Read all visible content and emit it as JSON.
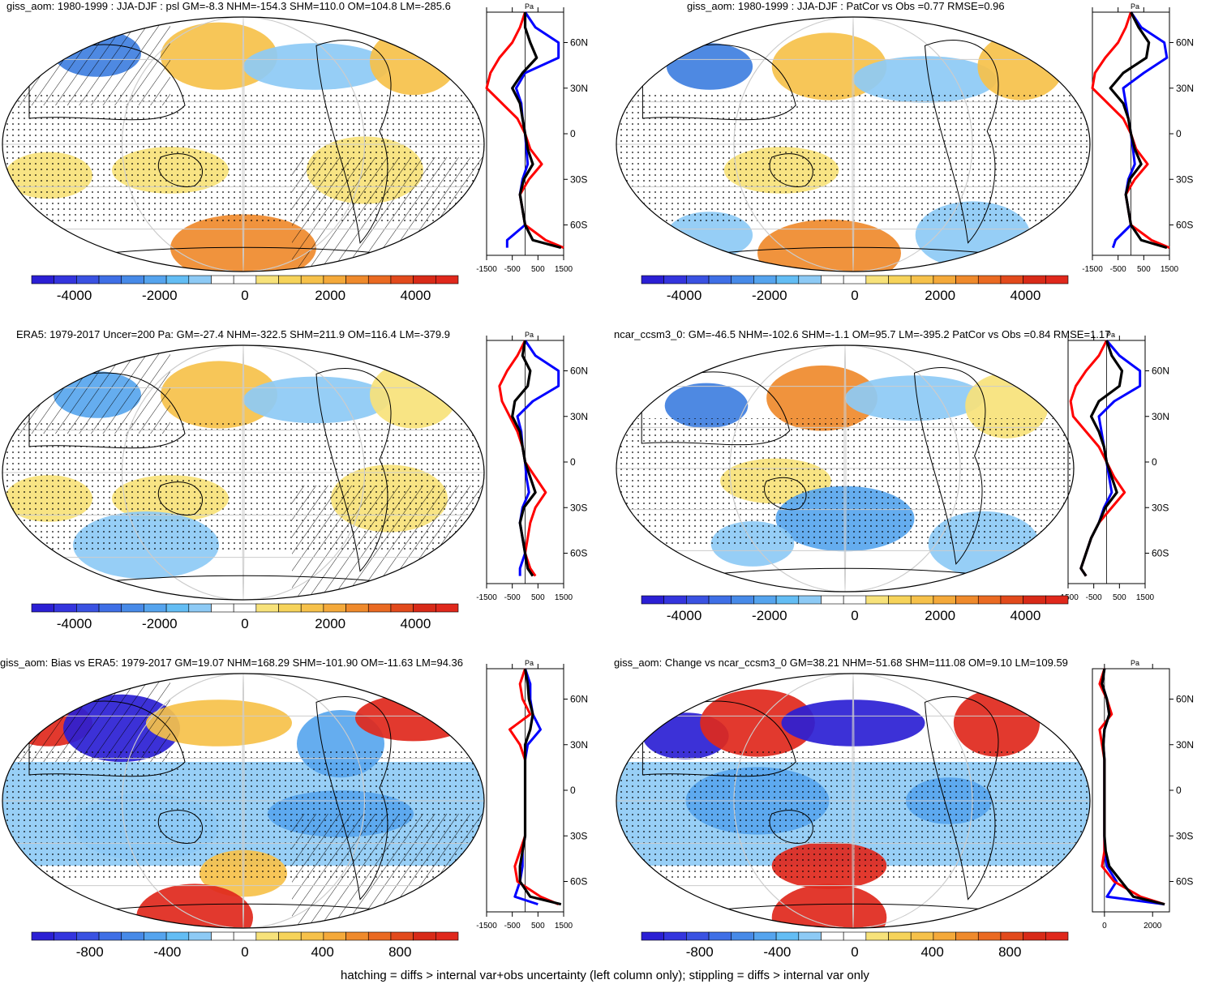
{
  "footer": "hatching = diffs > internal var+obs uncertainty (left column only); stippling = diffs > internal var only",
  "colors": {
    "blue_dark": "#2b1fd4",
    "blue": "#3f7fe0",
    "blue_mid": "#58a6ee",
    "blue_light": "#8dcaf5",
    "white": "#ffffff",
    "yellow": "#f7e27a",
    "orange_light": "#f6c14a",
    "orange": "#ef8a2c",
    "red": "#e0281c",
    "line_model": "#0000ff",
    "line_obs": "#ff0000",
    "line_diff": "#000000"
  },
  "chart_data": [
    {
      "id": "p1",
      "type": "heatmap",
      "title": "giss_aom: 1980-1999 : JJA-DJF : psl GM=-8.3 NHM=-154.3 SHM=110.0 OM=104.8 LM=-285.6",
      "colorbar": {
        "ticks": [
          "-4000",
          "-2000",
          "0",
          "2000",
          "4000"
        ],
        "range": [
          -5000,
          5000
        ]
      },
      "zonal_axis": {
        "unit": "Pa",
        "xticks": [
          "-1500",
          "-500",
          "500",
          "1500"
        ],
        "xrange": [
          -1500,
          1500
        ],
        "yticks": [
          "60N",
          "30N",
          "0",
          "30S",
          "60S"
        ]
      },
      "zonal_series": [
        {
          "name": "model",
          "lat": [
            80,
            70,
            60,
            50,
            40,
            30,
            20,
            10,
            0,
            -10,
            -20,
            -30,
            -40,
            -50,
            -60,
            -70,
            -75
          ],
          "values": [
            0,
            400,
            1300,
            1300,
            0,
            -350,
            -150,
            -100,
            0,
            50,
            100,
            -100,
            -200,
            -100,
            0,
            -700,
            -700
          ]
        },
        {
          "name": "obs",
          "lat": [
            80,
            70,
            60,
            50,
            40,
            30,
            20,
            10,
            0,
            -10,
            -20,
            -30,
            -40,
            -50,
            -60,
            -70,
            -75
          ],
          "values": [
            0,
            -200,
            -500,
            -1000,
            -1350,
            -1500,
            -900,
            -300,
            0,
            200,
            650,
            150,
            -200,
            -100,
            0,
            800,
            1500
          ]
        },
        {
          "name": "diff",
          "lat": [
            80,
            70,
            60,
            50,
            40,
            30,
            20,
            10,
            0,
            -10,
            -20,
            -30,
            -40,
            -50,
            -60,
            -70,
            -75
          ],
          "values": [
            0,
            0,
            200,
            450,
            -100,
            -500,
            -200,
            -100,
            0,
            100,
            300,
            -50,
            -200,
            -100,
            0,
            300,
            1400
          ]
        }
      ]
    },
    {
      "id": "p2",
      "type": "heatmap",
      "title": "giss_aom: 1980-1999 : JJA-DJF : PatCor vs Obs =0.77 RMSE=0.96",
      "colorbar": {
        "ticks": [
          "-4000",
          "-2000",
          "0",
          "2000",
          "4000"
        ],
        "range": [
          -5000,
          5000
        ]
      },
      "zonal_axis": {
        "unit": "Pa",
        "xticks": [
          "-1500",
          "-500",
          "500",
          "1500"
        ],
        "xrange": [
          -1500,
          1500
        ],
        "yticks": [
          "60N",
          "30N",
          "0",
          "30S",
          "60S"
        ]
      },
      "zonal_series": [
        {
          "name": "model",
          "lat": [
            80,
            70,
            60,
            50,
            40,
            30,
            20,
            10,
            0,
            -10,
            -20,
            -30,
            -40,
            -50,
            -60,
            -70,
            -75
          ],
          "values": [
            0,
            400,
            1300,
            1400,
            500,
            -300,
            -200,
            -100,
            0,
            80,
            150,
            -100,
            -200,
            -100,
            0,
            -600,
            -700
          ]
        },
        {
          "name": "obs",
          "lat": [
            80,
            70,
            60,
            50,
            40,
            30,
            20,
            10,
            0,
            -10,
            -20,
            -30,
            -40,
            -50,
            -60,
            -70,
            -75
          ],
          "values": [
            0,
            -200,
            -500,
            -1000,
            -1400,
            -1500,
            -900,
            -300,
            0,
            200,
            650,
            150,
            -200,
            -100,
            0,
            800,
            1500
          ]
        },
        {
          "name": "diff",
          "lat": [
            80,
            70,
            60,
            50,
            40,
            30,
            20,
            10,
            0,
            -10,
            -20,
            -30,
            -40,
            -50,
            -60,
            -70,
            -75
          ],
          "values": [
            0,
            300,
            700,
            600,
            -300,
            -800,
            -300,
            -100,
            0,
            150,
            400,
            -50,
            -200,
            -100,
            0,
            400,
            1400
          ]
        }
      ]
    },
    {
      "id": "p3",
      "type": "heatmap",
      "title": "ERA5: 1979-2017 Uncer=200 Pa: GM=-27.4 NHM=-322.5 SHM=211.9 OM=116.4 LM=-379.9",
      "colorbar": {
        "ticks": [
          "-4000",
          "-2000",
          "0",
          "2000",
          "4000"
        ],
        "range": [
          -5000,
          5000
        ]
      },
      "zonal_axis": {
        "unit": "Pa",
        "xticks": [
          "-1500",
          "-500",
          "500",
          "1500"
        ],
        "xrange": [
          -1500,
          1500
        ],
        "yticks": [
          "60N",
          "30N",
          "0",
          "30S",
          "60S"
        ]
      },
      "zonal_series": [
        {
          "name": "model",
          "lat": [
            80,
            70,
            60,
            50,
            40,
            30,
            20,
            10,
            0,
            -10,
            -20,
            -30,
            -40,
            -50,
            -60,
            -70,
            -75
          ],
          "values": [
            0,
            400,
            1300,
            1300,
            300,
            -300,
            -150,
            -100,
            0,
            50,
            150,
            -100,
            -200,
            -100,
            0,
            -200,
            -200
          ]
        },
        {
          "name": "obs",
          "lat": [
            80,
            70,
            60,
            50,
            40,
            30,
            20,
            10,
            0,
            -10,
            -20,
            -30,
            -40,
            -50,
            -60,
            -70,
            -75
          ],
          "values": [
            0,
            -300,
            -700,
            -1000,
            -900,
            -600,
            -300,
            -100,
            0,
            400,
            800,
            400,
            200,
            100,
            0,
            200,
            400
          ]
        },
        {
          "name": "diff",
          "lat": [
            80,
            70,
            60,
            50,
            40,
            30,
            20,
            10,
            0,
            -10,
            -20,
            -30,
            -40,
            -50,
            -60,
            -70,
            -75
          ],
          "values": [
            0,
            -100,
            200,
            100,
            -400,
            -500,
            -200,
            -100,
            0,
            200,
            400,
            -50,
            -200,
            -100,
            0,
            100,
            300
          ]
        }
      ]
    },
    {
      "id": "p4",
      "type": "heatmap",
      "title": "ncar_ccsm3_0: GM=-46.5 NHM=-102.6 SHM=-1.1 OM=95.7 LM=-395.2 PatCor vs Obs =0.84 RMSE=1.17",
      "colorbar": {
        "ticks": [
          "-4000",
          "-2000",
          "0",
          "2000",
          "4000"
        ],
        "range": [
          -5000,
          5000
        ]
      },
      "zonal_axis": {
        "unit": "Pa",
        "xticks": [
          "-1500",
          "-500",
          "500",
          "1500"
        ],
        "xrange": [
          -1500,
          1500
        ],
        "yticks": [
          "60N",
          "30N",
          "0",
          "30S",
          "60S"
        ]
      },
      "zonal_series": [
        {
          "name": "model",
          "lat": [
            80,
            70,
            60,
            50,
            40,
            30,
            20,
            10,
            0,
            -10,
            -20,
            -30,
            -40,
            -50,
            -60,
            -70,
            -75
          ],
          "values": [
            0,
            500,
            1300,
            1300,
            300,
            -300,
            -200,
            -100,
            0,
            100,
            200,
            -100,
            -300,
            -600,
            -800,
            -1000,
            -800
          ]
        },
        {
          "name": "obs",
          "lat": [
            80,
            70,
            60,
            50,
            40,
            30,
            20,
            10,
            0,
            -10,
            -20,
            -30,
            -40,
            -50,
            -60,
            -70,
            -75
          ],
          "values": [
            0,
            -300,
            -800,
            -1200,
            -1400,
            -1300,
            -800,
            -300,
            0,
            300,
            700,
            200,
            -300,
            -600,
            -800,
            -1000,
            -800
          ]
        },
        {
          "name": "diff",
          "lat": [
            80,
            70,
            60,
            50,
            40,
            30,
            20,
            10,
            0,
            -10,
            -20,
            -30,
            -40,
            -50,
            -60,
            -70,
            -75
          ],
          "values": [
            0,
            200,
            600,
            500,
            -300,
            -600,
            -300,
            -100,
            0,
            200,
            400,
            -50,
            -300,
            -600,
            -800,
            -1000,
            -800
          ]
        }
      ]
    },
    {
      "id": "p5",
      "type": "heatmap",
      "title": "giss_aom: Bias vs ERA5: 1979-2017 GM=19.07 NHM=168.29 SHM=-101.90 OM=-11.63 LM=94.36",
      "colorbar": {
        "ticks": [
          "-800",
          "-400",
          "0",
          "400",
          "800"
        ],
        "range": [
          -1100,
          1100
        ]
      },
      "zonal_axis": {
        "unit": "Pa",
        "xticks": [
          "-1500",
          "-500",
          "500",
          "1500"
        ],
        "xrange": [
          -1500,
          1500
        ],
        "yticks": [
          "60N",
          "30N",
          "0",
          "30S",
          "60S"
        ]
      },
      "zonal_series": [
        {
          "name": "model",
          "lat": [
            80,
            70,
            60,
            50,
            40,
            30,
            20,
            10,
            0,
            -10,
            -20,
            -30,
            -40,
            -50,
            -60,
            -70,
            -75
          ],
          "values": [
            0,
            200,
            200,
            300,
            600,
            100,
            0,
            0,
            0,
            0,
            0,
            0,
            -100,
            -100,
            -200,
            -400,
            500
          ]
        },
        {
          "name": "obs",
          "lat": [
            80,
            70,
            60,
            50,
            40,
            30,
            20,
            10,
            0,
            -10,
            -20,
            -30,
            -40,
            -50,
            -60,
            -70,
            -75
          ],
          "values": [
            0,
            -200,
            -100,
            200,
            -600,
            -200,
            0,
            0,
            0,
            0,
            0,
            0,
            -200,
            -400,
            -300,
            600,
            1300
          ]
        },
        {
          "name": "diff",
          "lat": [
            80,
            70,
            60,
            50,
            40,
            30,
            20,
            10,
            0,
            -10,
            -20,
            -30,
            -40,
            -50,
            -60,
            -70,
            -75
          ],
          "values": [
            0,
            100,
            150,
            300,
            200,
            0,
            0,
            0,
            0,
            0,
            0,
            0,
            -100,
            -200,
            -200,
            200,
            1400
          ]
        }
      ]
    },
    {
      "id": "p6",
      "type": "heatmap",
      "title": "giss_aom: Change vs ncar_ccsm3_0 GM=38.21 NHM=-51.68 SHM=111.08 OM=9.10 LM=109.59",
      "colorbar": {
        "ticks": [
          "-800",
          "-400",
          "0",
          "400",
          "800"
        ],
        "range": [
          -1100,
          1100
        ]
      },
      "zonal_axis": {
        "unit": "Pa",
        "xticks": [
          "0",
          "2000"
        ],
        "xrange": [
          -500,
          2700
        ],
        "yticks": [
          "60N",
          "30N",
          "0",
          "30S",
          "60S"
        ]
      },
      "zonal_series": [
        {
          "name": "model",
          "lat": [
            80,
            70,
            60,
            50,
            40,
            30,
            20,
            10,
            0,
            -10,
            -20,
            -30,
            -40,
            -50,
            -60,
            -70,
            -75
          ],
          "values": [
            0,
            -100,
            100,
            200,
            0,
            -50,
            0,
            0,
            0,
            0,
            0,
            0,
            0,
            100,
            500,
            100,
            2500
          ]
        },
        {
          "name": "obs",
          "lat": [
            80,
            70,
            60,
            50,
            40,
            30,
            20,
            10,
            0,
            -10,
            -20,
            -30,
            -40,
            -50,
            -60,
            -70,
            -75
          ],
          "values": [
            0,
            -200,
            100,
            300,
            -200,
            -100,
            0,
            0,
            0,
            0,
            0,
            0,
            0,
            -100,
            400,
            1500,
            2500
          ]
        },
        {
          "name": "diff",
          "lat": [
            80,
            70,
            60,
            50,
            40,
            30,
            20,
            10,
            0,
            -10,
            -20,
            -30,
            -40,
            -50,
            -60,
            -70,
            -75
          ],
          "values": [
            0,
            -100,
            100,
            200,
            0,
            -50,
            0,
            0,
            0,
            0,
            0,
            0,
            50,
            200,
            700,
            1200,
            2500
          ]
        }
      ]
    }
  ]
}
